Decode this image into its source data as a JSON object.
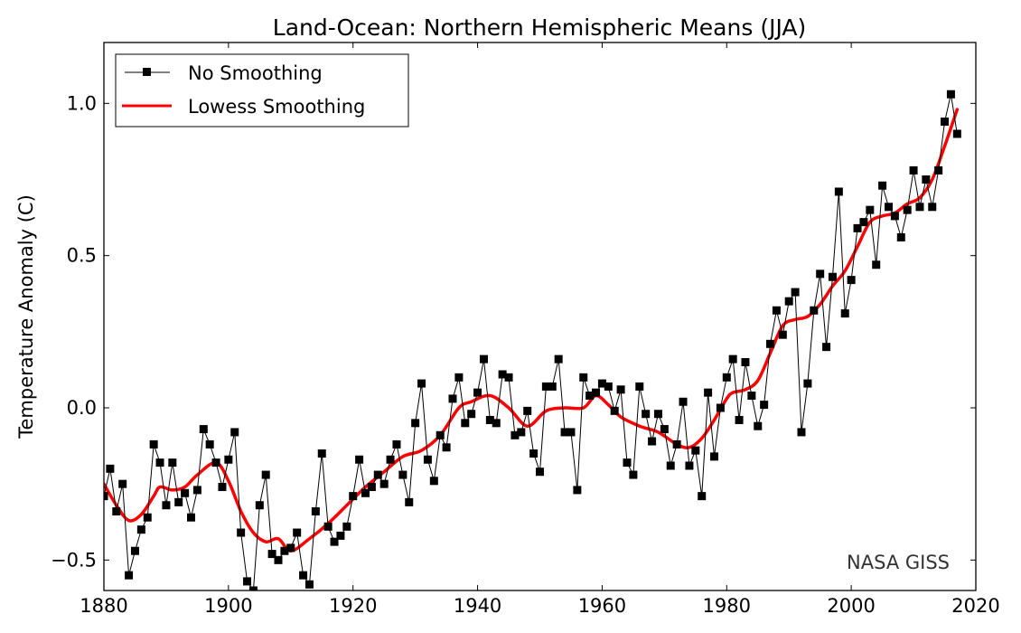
{
  "chart_data": {
    "type": "line",
    "title": "Land-Ocean: Northern Hemispheric Means (JJA)",
    "xlabel": "",
    "ylabel": "Temperature Anomaly (C)",
    "xlim": [
      1880,
      2020
    ],
    "ylim": [
      -0.6,
      1.2
    ],
    "xticks": [
      1880,
      1900,
      1920,
      1940,
      1960,
      1980,
      2000,
      2020
    ],
    "xtick_labels": [
      "1880",
      "1900",
      "1920",
      "1940",
      "1960",
      "1980",
      "2000",
      "2020"
    ],
    "yticks": [
      -0.5,
      0.0,
      0.5,
      1.0
    ],
    "ytick_labels": [
      "−0.5",
      "0.0",
      "0.5",
      "1.0"
    ],
    "grid": false,
    "legend_position": "top-left",
    "annotation": "NASA GISS",
    "series": [
      {
        "name": "No Smoothing",
        "color": "#000000",
        "marker": "square",
        "x": [
          1880,
          1881,
          1882,
          1883,
          1884,
          1885,
          1886,
          1887,
          1888,
          1889,
          1890,
          1891,
          1892,
          1893,
          1894,
          1895,
          1896,
          1897,
          1898,
          1899,
          1900,
          1901,
          1902,
          1903,
          1904,
          1905,
          1906,
          1907,
          1908,
          1909,
          1910,
          1911,
          1912,
          1913,
          1914,
          1915,
          1916,
          1917,
          1918,
          1919,
          1920,
          1921,
          1922,
          1923,
          1924,
          1925,
          1926,
          1927,
          1928,
          1929,
          1930,
          1931,
          1932,
          1933,
          1934,
          1935,
          1936,
          1937,
          1938,
          1939,
          1940,
          1941,
          1942,
          1943,
          1944,
          1945,
          1946,
          1947,
          1948,
          1949,
          1950,
          1951,
          1952,
          1953,
          1954,
          1955,
          1956,
          1957,
          1958,
          1959,
          1960,
          1961,
          1962,
          1963,
          1964,
          1965,
          1966,
          1967,
          1968,
          1969,
          1970,
          1971,
          1972,
          1973,
          1974,
          1975,
          1976,
          1977,
          1978,
          1979,
          1980,
          1981,
          1982,
          1983,
          1984,
          1985,
          1986,
          1987,
          1988,
          1989,
          1990,
          1991,
          1992,
          1993,
          1994,
          1995,
          1996,
          1997,
          1998,
          1999,
          2000,
          2001,
          2002,
          2003,
          2004,
          2005,
          2006,
          2007,
          2008,
          2009,
          2010,
          2011,
          2012,
          2013,
          2014,
          2015,
          2016,
          2017
        ],
        "values": [
          -0.29,
          -0.2,
          -0.34,
          -0.25,
          -0.55,
          -0.47,
          -0.4,
          -0.36,
          -0.12,
          -0.18,
          -0.32,
          -0.18,
          -0.31,
          -0.28,
          -0.36,
          -0.27,
          -0.07,
          -0.12,
          -0.18,
          -0.26,
          -0.17,
          -0.08,
          -0.41,
          -0.57,
          -0.6,
          -0.32,
          -0.22,
          -0.48,
          -0.5,
          -0.47,
          -0.46,
          -0.41,
          -0.55,
          -0.58,
          -0.34,
          -0.15,
          -0.39,
          -0.44,
          -0.42,
          -0.39,
          -0.29,
          -0.17,
          -0.28,
          -0.26,
          -0.22,
          -0.25,
          -0.17,
          -0.12,
          -0.22,
          -0.31,
          -0.05,
          0.08,
          -0.17,
          -0.24,
          -0.09,
          -0.13,
          0.03,
          0.1,
          -0.05,
          -0.02,
          0.05,
          0.16,
          -0.04,
          -0.05,
          0.11,
          0.1,
          -0.09,
          -0.08,
          -0.01,
          -0.15,
          -0.21,
          0.07,
          0.07,
          0.16,
          -0.08,
          -0.08,
          -0.27,
          0.1,
          0.04,
          0.05,
          0.08,
          0.07,
          -0.01,
          0.06,
          -0.18,
          -0.22,
          0.07,
          -0.02,
          -0.11,
          -0.02,
          -0.07,
          -0.19,
          -0.12,
          0.02,
          -0.19,
          -0.14,
          -0.29,
          0.05,
          -0.16,
          0.0,
          0.1,
          0.16,
          -0.04,
          0.15,
          0.04,
          -0.06,
          0.01,
          0.21,
          0.32,
          0.24,
          0.35,
          0.38,
          -0.08,
          0.08,
          0.32,
          0.44,
          0.2,
          0.43,
          0.71,
          0.31,
          0.42,
          0.59,
          0.61,
          0.65,
          0.47,
          0.73,
          0.66,
          0.63,
          0.56,
          0.65,
          0.78,
          0.66,
          0.75,
          0.66,
          0.78,
          0.94,
          1.03,
          0.9
        ]
      },
      {
        "name": "Lowess Smoothing",
        "color": "#ff0000",
        "marker": "none",
        "x": [
          1880,
          1882,
          1884,
          1886,
          1888,
          1889,
          1891,
          1893,
          1895,
          1898,
          1900,
          1902,
          1904,
          1906,
          1908,
          1910,
          1913,
          1916,
          1919,
          1922,
          1925,
          1928,
          1931,
          1934,
          1937,
          1939,
          1942,
          1945,
          1948,
          1951,
          1954,
          1957,
          1959,
          1961,
          1963,
          1966,
          1969,
          1972,
          1974,
          1976,
          1978,
          1980,
          1981,
          1983,
          1985,
          1987,
          1989,
          1991,
          1993,
          1995,
          1997,
          1999,
          2001,
          2003,
          2005,
          2007,
          2009,
          2011,
          2013,
          2015,
          2017
        ],
        "values": [
          -0.25,
          -0.32,
          -0.37,
          -0.35,
          -0.29,
          -0.26,
          -0.27,
          -0.26,
          -0.22,
          -0.18,
          -0.24,
          -0.34,
          -0.41,
          -0.44,
          -0.43,
          -0.47,
          -0.43,
          -0.38,
          -0.32,
          -0.26,
          -0.21,
          -0.16,
          -0.14,
          -0.09,
          0.0,
          0.02,
          0.04,
          0.0,
          -0.06,
          -0.01,
          0.0,
          0.0,
          0.04,
          0.01,
          -0.03,
          -0.06,
          -0.08,
          -0.12,
          -0.13,
          -0.1,
          -0.04,
          0.03,
          0.05,
          0.06,
          0.09,
          0.18,
          0.27,
          0.29,
          0.3,
          0.34,
          0.4,
          0.45,
          0.53,
          0.61,
          0.63,
          0.64,
          0.67,
          0.69,
          0.75,
          0.86,
          0.98
        ]
      }
    ]
  }
}
